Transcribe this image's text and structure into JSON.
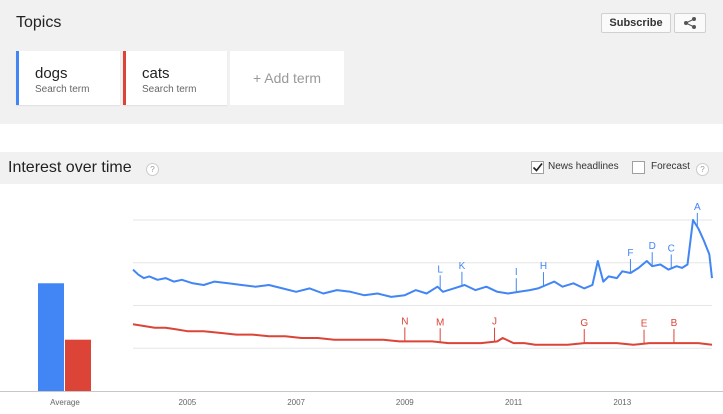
{
  "topics": {
    "title": "Topics",
    "subscribe_label": "Subscribe",
    "share_icon": "share-icon",
    "terms": [
      {
        "name": "dogs",
        "type": "Search term",
        "color": "#4285f4"
      },
      {
        "name": "cats",
        "type": "Search term",
        "color": "#db4437"
      }
    ],
    "add_term": "+ Add term"
  },
  "interest": {
    "title": "Interest over time",
    "help": "?",
    "news_headlines": {
      "label": "News headlines",
      "checked": true
    },
    "forecast": {
      "label": "Forecast",
      "checked": false,
      "help": "?"
    }
  },
  "chart_data": {
    "type": "line",
    "title": "",
    "xlabel": "",
    "ylabel": "",
    "average_label": "Average",
    "averages": [
      {
        "name": "dogs",
        "value": 63
      },
      {
        "name": "cats",
        "value": 30
      }
    ],
    "ylim": [
      0,
      100
    ],
    "grid": true,
    "x_ticks": [
      "2005",
      "2007",
      "2009",
      "2011",
      "2013"
    ],
    "x_range": [
      2004.0,
      2014.65
    ],
    "series": [
      {
        "name": "dogs",
        "color": "#4285f4",
        "x": [
          2004.0,
          2004.1,
          2004.2,
          2004.3,
          2004.45,
          2004.6,
          2004.75,
          2004.9,
          2005.1,
          2005.3,
          2005.5,
          2005.75,
          2006.0,
          2006.25,
          2006.5,
          2006.75,
          2007.0,
          2007.25,
          2007.5,
          2007.75,
          2008.0,
          2008.25,
          2008.5,
          2008.75,
          2009.0,
          2009.2,
          2009.4,
          2009.6,
          2009.7,
          2009.9,
          2010.1,
          2010.3,
          2010.5,
          2010.7,
          2010.9,
          2011.1,
          2011.3,
          2011.45,
          2011.6,
          2011.75,
          2011.9,
          2012.1,
          2012.3,
          2012.45,
          2012.55,
          2012.65,
          2012.75,
          2012.9,
          2013.0,
          2013.15,
          2013.3,
          2013.45,
          2013.55,
          2013.7,
          2013.85,
          2014.0,
          2014.1,
          2014.2,
          2014.3,
          2014.4,
          2014.5,
          2014.6,
          2014.65
        ],
        "y": [
          71,
          68,
          66,
          67,
          65,
          66,
          64,
          65,
          63,
          62,
          64,
          63,
          62,
          61,
          62,
          60,
          58,
          60,
          57,
          59,
          58,
          56,
          57,
          55,
          56,
          59,
          57,
          61,
          58,
          60,
          62,
          59,
          61,
          58,
          57,
          58,
          59,
          60,
          62,
          64,
          61,
          63,
          60,
          62,
          76,
          64,
          67,
          66,
          70,
          69,
          72,
          76,
          73,
          74,
          71,
          73,
          72,
          74,
          100,
          95,
          88,
          80,
          66
        ]
      },
      {
        "name": "cats",
        "color": "#db4437",
        "x": [
          2004.0,
          2004.2,
          2004.4,
          2004.6,
          2004.8,
          2005.0,
          2005.3,
          2005.6,
          2005.9,
          2006.2,
          2006.5,
          2006.8,
          2007.1,
          2007.4,
          2007.7,
          2008.0,
          2008.3,
          2008.6,
          2008.9,
          2009.2,
          2009.5,
          2009.8,
          2010.1,
          2010.4,
          2010.7,
          2010.8,
          2011.0,
          2011.2,
          2011.4,
          2011.7,
          2012.0,
          2012.3,
          2012.6,
          2012.9,
          2013.2,
          2013.5,
          2013.8,
          2014.1,
          2014.4,
          2014.65
        ],
        "y": [
          39,
          38,
          37,
          37,
          36,
          35,
          35,
          34,
          33,
          33,
          32,
          32,
          31,
          31,
          30,
          30,
          30,
          30,
          29,
          29,
          29,
          28,
          28,
          28,
          29,
          31,
          28,
          28,
          27,
          27,
          27,
          28,
          28,
          28,
          27,
          28,
          28,
          28,
          28,
          27
        ]
      }
    ],
    "annotations": [
      {
        "label": "L",
        "series": "dogs",
        "x": 2009.65
      },
      {
        "label": "K",
        "series": "dogs",
        "x": 2010.05
      },
      {
        "label": "I",
        "series": "dogs",
        "x": 2011.05
      },
      {
        "label": "H",
        "series": "dogs",
        "x": 2011.55
      },
      {
        "label": "F",
        "series": "dogs",
        "x": 2013.15
      },
      {
        "label": "D",
        "series": "dogs",
        "x": 2013.55
      },
      {
        "label": "C",
        "series": "dogs",
        "x": 2013.9
      },
      {
        "label": "A",
        "series": "dogs",
        "x": 2014.38
      },
      {
        "label": "N",
        "series": "cats",
        "x": 2009.0
      },
      {
        "label": "M",
        "series": "cats",
        "x": 2009.65
      },
      {
        "label": "J",
        "series": "cats",
        "x": 2010.65
      },
      {
        "label": "G",
        "series": "cats",
        "x": 2012.3
      },
      {
        "label": "E",
        "series": "cats",
        "x": 2013.4
      },
      {
        "label": "B",
        "series": "cats",
        "x": 2013.95
      }
    ]
  }
}
